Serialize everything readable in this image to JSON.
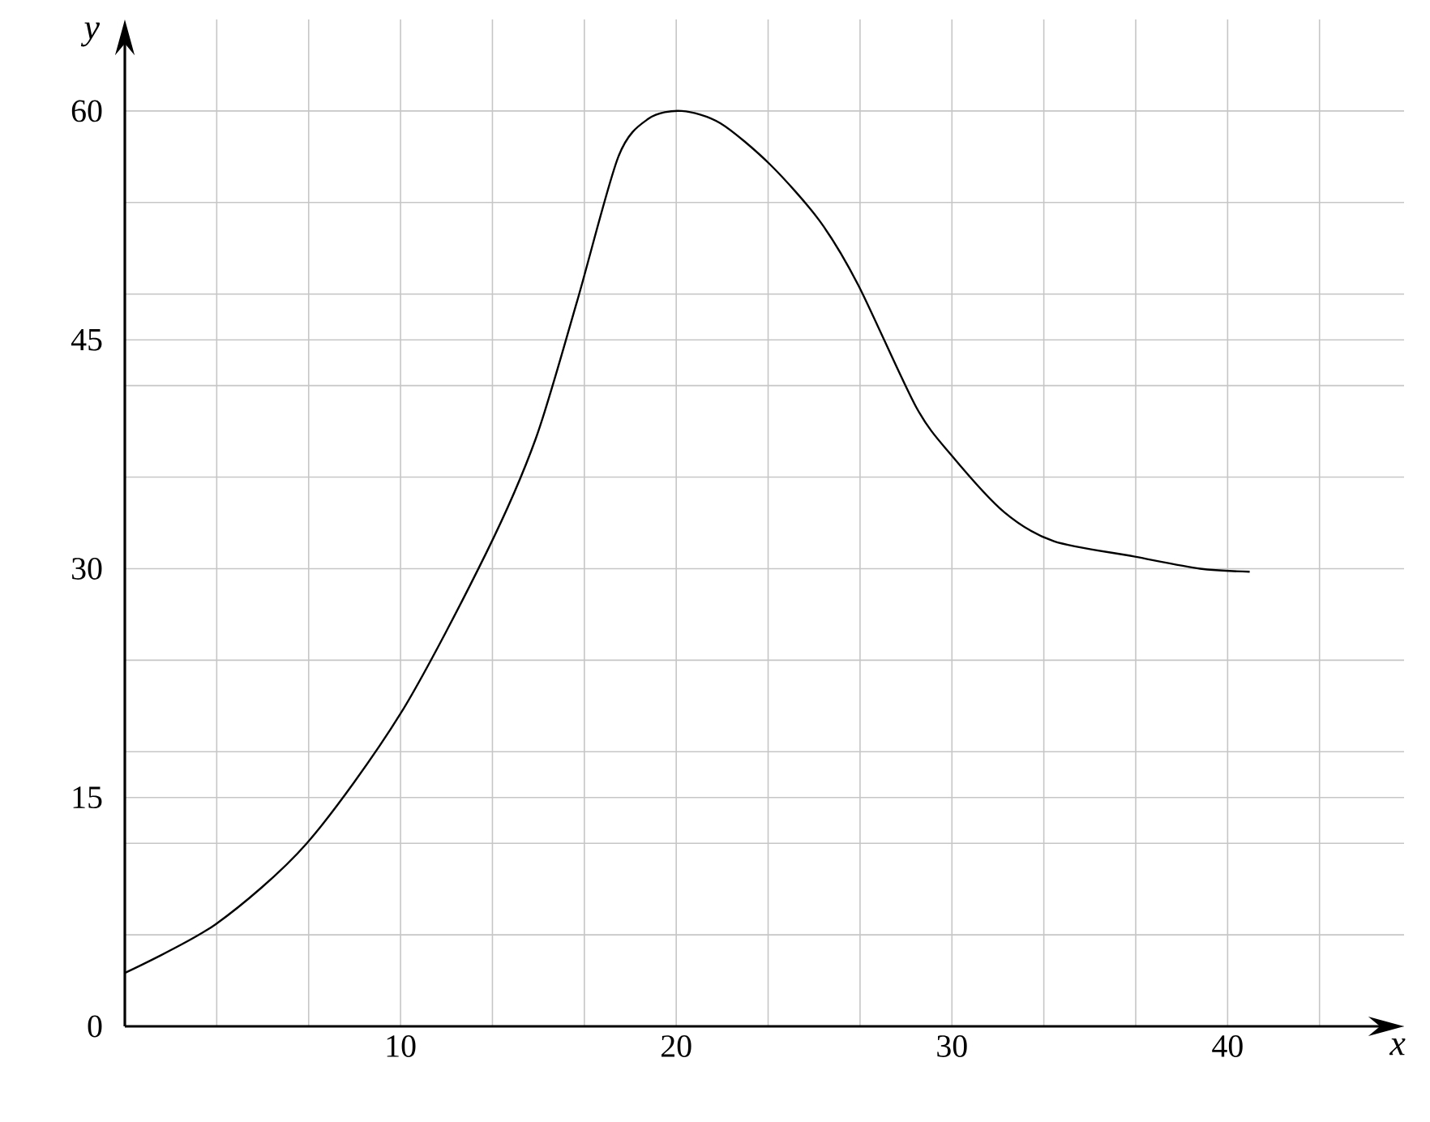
{
  "chart_data": {
    "type": "line",
    "xlabel": "x",
    "ylabel": "y",
    "x": [
      0,
      3.3,
      6.6,
      10,
      13.1,
      14.9,
      16.4,
      17.9,
      19,
      20.2,
      21.6,
      23.4,
      25.2,
      26.6,
      28.7,
      30,
      31.9,
      33.7,
      36.6,
      39,
      40.8
    ],
    "values": [
      3.5,
      6.7,
      12,
      20.5,
      31,
      38.5,
      47.5,
      57,
      59.5,
      60,
      59.2,
      56.5,
      52.8,
      48.6,
      40.6,
      37.4,
      33.7,
      31.8,
      30.8,
      30,
      29.8
    ],
    "color": "#000000",
    "xlim": [
      0,
      46.4
    ],
    "ylim": [
      0,
      66
    ],
    "xticks": [
      {
        "value": 3.333,
        "label": null
      },
      {
        "value": 6.667,
        "label": null
      },
      10,
      {
        "value": 13.333,
        "label": null
      },
      {
        "value": 16.667,
        "label": null
      },
      20,
      {
        "value": 23.333,
        "label": null
      },
      {
        "value": 26.667,
        "label": null
      },
      30,
      {
        "value": 33.333,
        "label": null
      },
      {
        "value": 36.667,
        "label": null
      },
      40,
      {
        "value": 43.333,
        "label": null
      }
    ],
    "yticks": [
      0,
      {
        "value": 6,
        "label": null
      },
      {
        "value": 12,
        "label": null
      },
      15,
      {
        "value": 18,
        "label": null
      },
      {
        "value": 24,
        "label": null
      },
      30,
      {
        "value": 36,
        "label": null
      },
      {
        "value": 42,
        "label": null
      },
      45,
      {
        "value": 48,
        "label": null
      },
      {
        "value": 54,
        "label": null
      },
      60
    ],
    "grid": true
  }
}
